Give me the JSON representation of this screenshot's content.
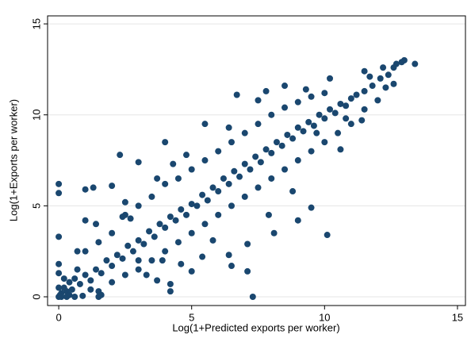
{
  "chart_data": {
    "type": "scatter",
    "x_label": "Log(1+Predicted exports per worker)",
    "y_label": "Log(1+Exports per worker)",
    "color": "#1a476f",
    "xlim": [
      -0.42,
      15.3
    ],
    "ylim": [
      -0.48,
      15.44
    ],
    "xticks": [
      0,
      5,
      10,
      15
    ],
    "yticks": [
      0,
      5,
      10,
      15
    ],
    "grid": true,
    "x": [
      0,
      0.1,
      0.2,
      0.3,
      0.4,
      0.5,
      0.6,
      0.8,
      1,
      1.2,
      1.4,
      1.6,
      1.8,
      2,
      2.2,
      2.4,
      2.6,
      2.8,
      3,
      3.2,
      3.4,
      3.6,
      3.8,
      4,
      4.2,
      4.4,
      4.6,
      4.8,
      5,
      5.2,
      5.4,
      5.6,
      5.8,
      6,
      6.2,
      6.4,
      6.6,
      6.8,
      7,
      7.2,
      7.4,
      7.6,
      7.8,
      8,
      8.2,
      8.4,
      8.6,
      8.8,
      9,
      9.2,
      9.4,
      9.6,
      9.8,
      10,
      10.2,
      10.4,
      10.6,
      10.8,
      11,
      11.2,
      11.5,
      11.8,
      12.1,
      12.4,
      12.7,
      13,
      12.9,
      13.4,
      12.6,
      1,
      1.5,
      2,
      2.5,
      3,
      3.5,
      4,
      4.5,
      5,
      5.5,
      6,
      6.5,
      7,
      7.5,
      8,
      8.5,
      9,
      9.5,
      10,
      1.5,
      2,
      2.5,
      3,
      3.5,
      4,
      4.5,
      5,
      5.5,
      6,
      6.5,
      7,
      7.5,
      8,
      8.5,
      9,
      9.5,
      10,
      10.5,
      11,
      11.5,
      12,
      0,
      0,
      0,
      0,
      0,
      0,
      0.05,
      0.1,
      0.3,
      0.6,
      0.9,
      1.5,
      1.6,
      7.3,
      4.2,
      4.2,
      2.3,
      4,
      3,
      1,
      1.3,
      1,
      1.4,
      0.7,
      0.7,
      2.4,
      2.5,
      3.3,
      3.7,
      3.9,
      4.6,
      5,
      5.4,
      6.5,
      7.1,
      7.1,
      6.4,
      8.1,
      9,
      9.5,
      10.1,
      7.9,
      8.8,
      6.7,
      6.4,
      7.5,
      7.8,
      9.3,
      8.5,
      10.2,
      11.7,
      12.2,
      12.3,
      11.5,
      12.6,
      10.8,
      11.4,
      10.6,
      9.7,
      5.8,
      5.5,
      4.3,
      4.8,
      3.7,
      2,
      2.7,
      3,
      1.2,
      0.2,
      0.4
    ],
    "values": [
      0,
      0.2,
      0.5,
      0.3,
      0.8,
      0.4,
      1,
      0.7,
      1.2,
      0.9,
      1.5,
      1.3,
      2,
      1.7,
      2.3,
      2.1,
      2.8,
      2.5,
      3.1,
      2.9,
      3.6,
      3.3,
      4,
      3.8,
      4.4,
      4.2,
      4.8,
      4.5,
      5.1,
      5,
      5.6,
      5.3,
      6,
      5.8,
      6.5,
      6.2,
      6.9,
      6.6,
      7.3,
      7,
      7.7,
      7.4,
      8.1,
      7.9,
      8.5,
      8.3,
      8.9,
      8.7,
      9.3,
      9.1,
      9.6,
      9.4,
      10,
      9.8,
      10.3,
      10.1,
      10.6,
      10.5,
      10.9,
      11.1,
      11.3,
      11.6,
      12,
      12.2,
      12.8,
      13,
      12.9,
      12.8,
      12.6,
      2.5,
      3,
      3.5,
      4.5,
      5,
      5.5,
      6.2,
      6.5,
      7,
      7.5,
      8,
      8.5,
      9,
      9.5,
      10,
      10.4,
      10.7,
      11,
      11.2,
      0.3,
      0.8,
      1.2,
      1.5,
      2,
      2.5,
      3,
      3.5,
      4,
      4.5,
      5,
      5.5,
      6,
      6.5,
      7,
      7.5,
      8,
      8.5,
      9,
      9.5,
      10.3,
      10.8,
      6.2,
      5.7,
      3.3,
      1.8,
      1.3,
      0.5,
      0.1,
      0,
      0,
      0,
      0.05,
      0,
      0.1,
      0,
      0.7,
      0.3,
      7.8,
      8.5,
      7.4,
      5.9,
      6,
      4.2,
      4,
      2.5,
      1.5,
      4.4,
      5.2,
      1.2,
      0.9,
      2,
      1.8,
      1.4,
      2.2,
      1.7,
      1.4,
      2.9,
      2.3,
      3.5,
      4.2,
      4.9,
      3.4,
      4.5,
      5.8,
      11.1,
      9.3,
      10.8,
      11.3,
      11.4,
      11.6,
      12,
      12.1,
      12.6,
      11.5,
      12.4,
      11.7,
      9.8,
      9.7,
      8.1,
      9,
      3.1,
      9.5,
      7.3,
      7.8,
      6.5,
      6.1,
      4.3,
      2,
      0.4,
      1,
      0.1
    ]
  }
}
